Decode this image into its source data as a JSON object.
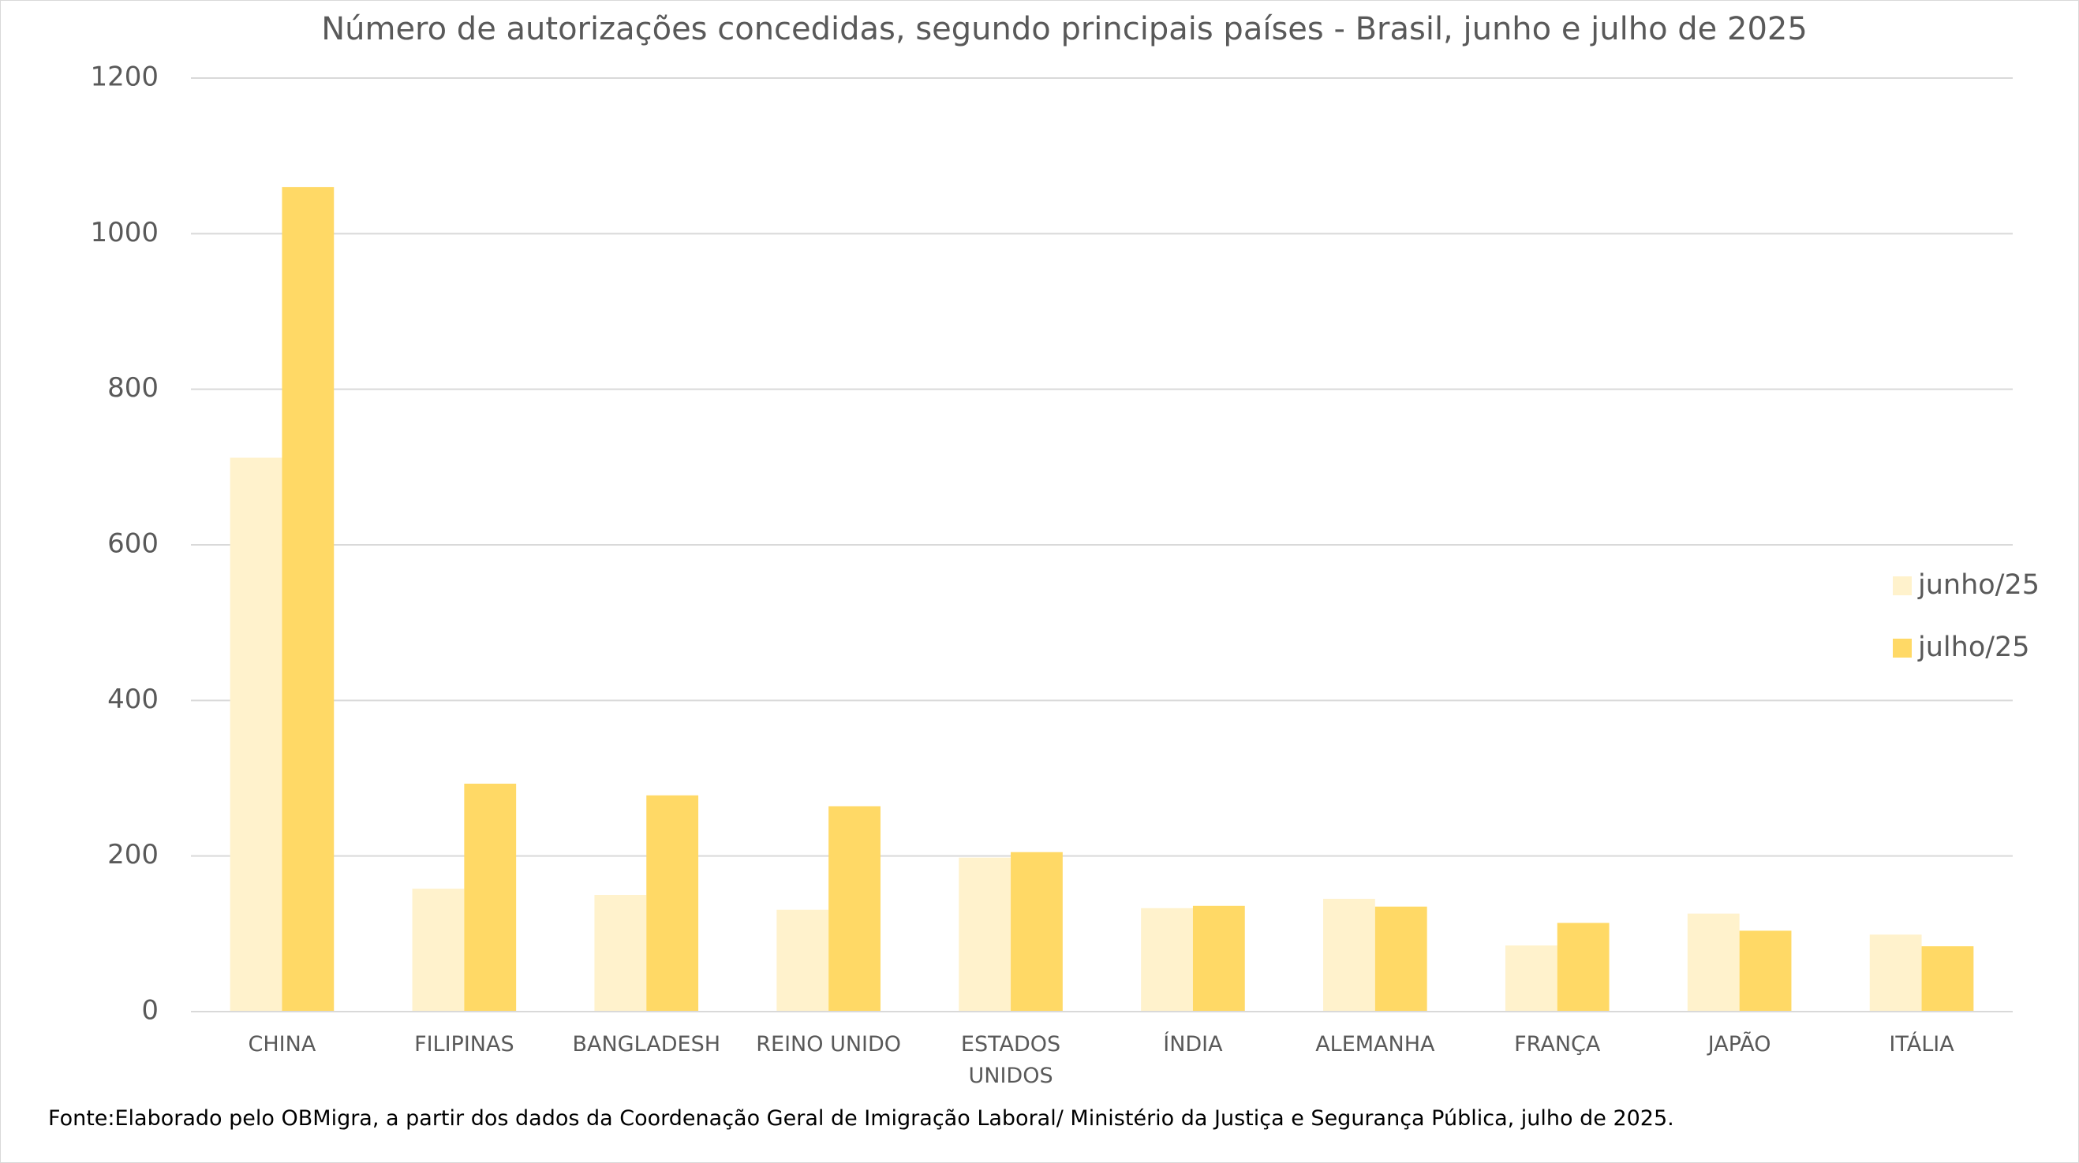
{
  "chart_data": {
    "type": "bar",
    "title": "Número de autorizações concedidas, segundo principais países - Brasil, junho e julho de 2025",
    "categories": [
      "CHINA",
      "FILIPINAS",
      "BANGLADESH",
      "REINO UNIDO",
      "ESTADOS UNIDOS",
      "ÍNDIA",
      "ALEMANHA",
      "FRANÇA",
      "JAPÃO",
      "ITÁLIA"
    ],
    "series": [
      {
        "name": "junho/25",
        "color": "#fff2cc",
        "values": [
          712,
          158,
          150,
          131,
          198,
          133,
          145,
          85,
          126,
          99
        ]
      },
      {
        "name": "julho/25",
        "color": "#ffd966",
        "values": [
          1060,
          293,
          278,
          264,
          205,
          136,
          135,
          114,
          104,
          84
        ]
      }
    ],
    "ylim": [
      0,
      1200
    ],
    "yticks": [
      0,
      200,
      400,
      600,
      800,
      1000,
      1200
    ],
    "grid": true,
    "legend": "right",
    "source": "Fonte:Elaborado pelo OBMigra, a partir dos dados da Coordenação Geral de Imigração Laboral/ Ministério da Justiça e Segurança Pública, julho de 2025."
  }
}
